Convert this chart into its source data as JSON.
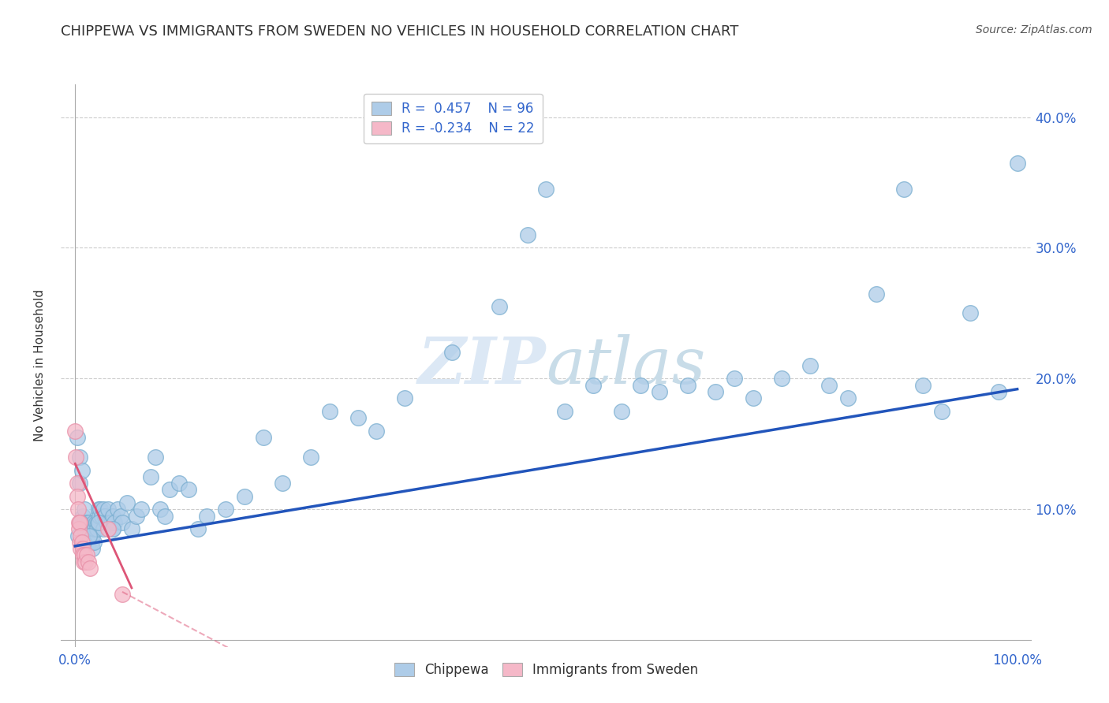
{
  "title": "CHIPPEWA VS IMMIGRANTS FROM SWEDEN NO VEHICLES IN HOUSEHOLD CORRELATION CHART",
  "source_text": "Source: ZipAtlas.com",
  "ylabel": "No Vehicles in Household",
  "xlim": [
    0.0,
    1.0
  ],
  "ylim": [
    0.0,
    0.42
  ],
  "ytick_labels": [
    "10.0%",
    "20.0%",
    "30.0%",
    "40.0%"
  ],
  "ytick_positions": [
    0.1,
    0.2,
    0.3,
    0.4
  ],
  "legend_r1": "R =  0.457",
  "legend_n1": "N = 96",
  "legend_r2": "R = -0.234",
  "legend_n2": "N = 22",
  "blue_fill": "#aecce8",
  "blue_edge": "#7aaed0",
  "blue_line_color": "#2255bb",
  "pink_fill": "#f5b8c8",
  "pink_edge": "#e890a8",
  "pink_line_color": "#dd5577",
  "title_color": "#333333",
  "source_color": "#555555",
  "watermark_color": "#dce8f5",
  "chippewa_x": [
    0.002,
    0.005,
    0.005,
    0.007,
    0.008,
    0.008,
    0.009,
    0.01,
    0.01,
    0.01,
    0.012,
    0.012,
    0.013,
    0.014,
    0.015,
    0.015,
    0.016,
    0.017,
    0.018,
    0.018,
    0.019,
    0.02,
    0.02,
    0.021,
    0.022,
    0.023,
    0.024,
    0.025,
    0.026,
    0.027,
    0.028,
    0.03,
    0.03,
    0.032,
    0.033,
    0.035,
    0.036,
    0.038,
    0.04,
    0.04,
    0.042,
    0.045,
    0.048,
    0.05,
    0.055,
    0.06,
    0.065,
    0.07,
    0.08,
    0.085,
    0.09,
    0.095,
    0.1,
    0.11,
    0.12,
    0.13,
    0.14,
    0.16,
    0.18,
    0.2,
    0.22,
    0.25,
    0.27,
    0.3,
    0.32,
    0.35,
    0.4,
    0.45,
    0.48,
    0.5,
    0.52,
    0.55,
    0.58,
    0.6,
    0.62,
    0.65,
    0.68,
    0.7,
    0.72,
    0.75,
    0.78,
    0.8,
    0.82,
    0.85,
    0.88,
    0.9,
    0.92,
    0.95,
    0.98,
    1.0,
    0.003,
    0.006,
    0.009,
    0.015,
    0.025,
    0.04
  ],
  "chippewa_y": [
    0.155,
    0.14,
    0.12,
    0.13,
    0.09,
    0.095,
    0.085,
    0.085,
    0.09,
    0.1,
    0.08,
    0.09,
    0.085,
    0.09,
    0.075,
    0.085,
    0.08,
    0.075,
    0.07,
    0.08,
    0.085,
    0.075,
    0.09,
    0.085,
    0.09,
    0.085,
    0.09,
    0.1,
    0.095,
    0.1,
    0.095,
    0.085,
    0.1,
    0.095,
    0.09,
    0.1,
    0.09,
    0.09,
    0.085,
    0.095,
    0.09,
    0.1,
    0.095,
    0.09,
    0.105,
    0.085,
    0.095,
    0.1,
    0.125,
    0.14,
    0.1,
    0.095,
    0.115,
    0.12,
    0.115,
    0.085,
    0.095,
    0.1,
    0.11,
    0.155,
    0.12,
    0.14,
    0.175,
    0.17,
    0.16,
    0.185,
    0.22,
    0.255,
    0.31,
    0.345,
    0.175,
    0.195,
    0.175,
    0.195,
    0.19,
    0.195,
    0.19,
    0.2,
    0.185,
    0.2,
    0.21,
    0.195,
    0.185,
    0.265,
    0.345,
    0.195,
    0.175,
    0.25,
    0.19,
    0.365,
    0.08,
    0.09,
    0.075,
    0.08,
    0.09,
    0.085
  ],
  "sweden_x": [
    0.0,
    0.001,
    0.002,
    0.002,
    0.003,
    0.004,
    0.004,
    0.005,
    0.005,
    0.006,
    0.006,
    0.007,
    0.008,
    0.008,
    0.009,
    0.01,
    0.011,
    0.012,
    0.014,
    0.016,
    0.035,
    0.05
  ],
  "sweden_y": [
    0.16,
    0.14,
    0.12,
    0.11,
    0.1,
    0.09,
    0.085,
    0.09,
    0.075,
    0.08,
    0.07,
    0.075,
    0.07,
    0.065,
    0.06,
    0.065,
    0.06,
    0.065,
    0.06,
    0.055,
    0.085,
    0.035
  ],
  "blue_line_x": [
    0.0,
    1.0
  ],
  "blue_line_y": [
    0.072,
    0.192
  ],
  "pink_line_x": [
    0.0,
    0.06
  ],
  "pink_line_y": [
    0.135,
    0.04
  ]
}
